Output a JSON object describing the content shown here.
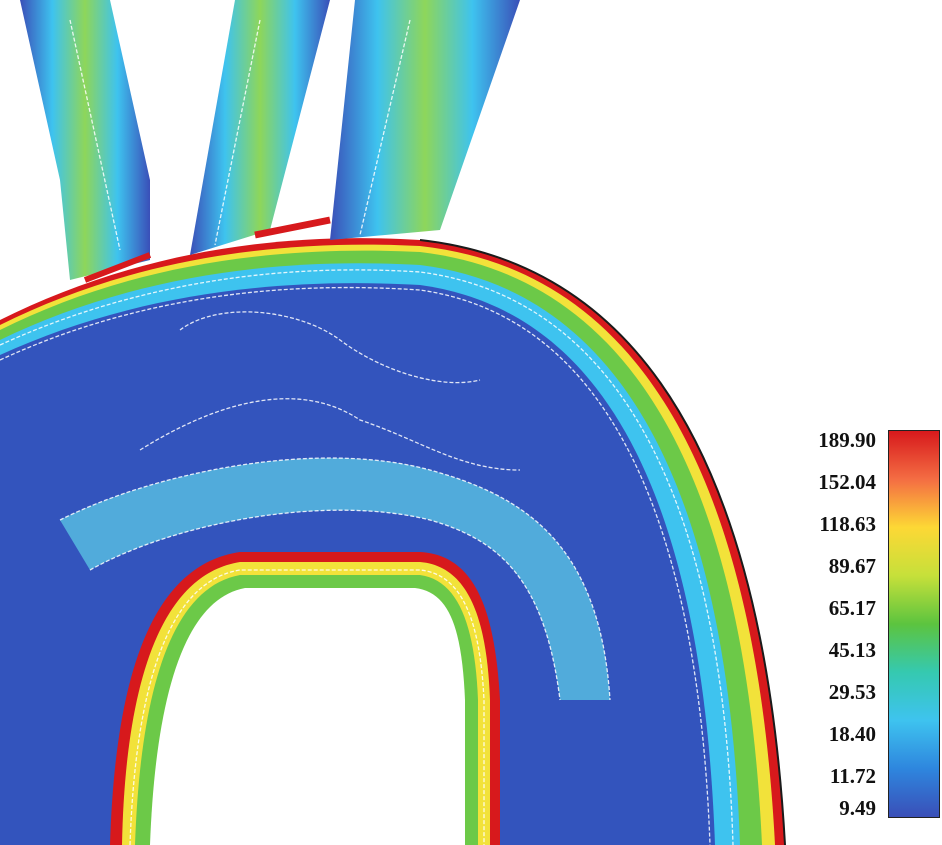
{
  "colorbar": {
    "ticks": [
      "189.90",
      "152.04",
      "118.63",
      "89.67",
      "65.17",
      "45.13",
      "29.53",
      "18.40",
      "11.72",
      "9.49"
    ],
    "colors": [
      "#d7191c",
      "#f46d43",
      "#fdd835",
      "#c6e03a",
      "#5cc43f",
      "#35c9b0",
      "#3ec3ef",
      "#2e86de",
      "#3a4fb8"
    ]
  }
}
